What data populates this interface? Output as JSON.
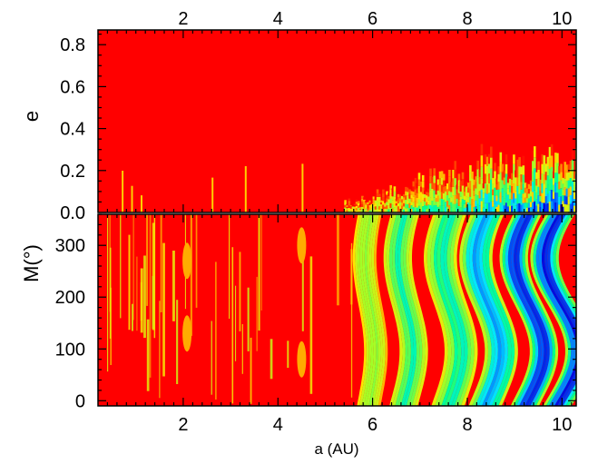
{
  "chart_data": [
    {
      "type": "heatmap",
      "panel": "top",
      "xlabel": "",
      "ylabel": "e",
      "xlim": [
        0.2,
        10.3
      ],
      "ylim": [
        0.0,
        0.87
      ],
      "x_ticks": [
        2,
        4,
        6,
        8,
        10
      ],
      "x_tick_labels": [
        "2",
        "4",
        "6",
        "8",
        "10"
      ],
      "x_tick_labels_position": "top",
      "y_ticks": [
        0.0,
        0.2,
        0.4,
        0.6,
        0.8
      ],
      "y_tick_labels": [
        "0.0",
        "0.2",
        "0.4",
        "0.6",
        "0.8"
      ],
      "colormap": [
        "#ff0000",
        "#ffff00",
        "#00ff80",
        "#00ffff",
        "#0000ff"
      ],
      "background_color": "#ff0000",
      "stable_region_boundary": [
        {
          "a": 0.6,
          "e": 0.25
        },
        {
          "a": 1.0,
          "e": 0.12
        },
        {
          "a": 1.5,
          "e": 0.06
        },
        {
          "a": 2.6,
          "e": 0.2
        },
        {
          "a": 4.5,
          "e": 0.25
        },
        {
          "a": 5.5,
          "e": 0.05
        },
        {
          "a": 6.5,
          "e": 0.12
        },
        {
          "a": 7.5,
          "e": 0.18
        },
        {
          "a": 8.5,
          "e": 0.28
        },
        {
          "a": 9.5,
          "e": 0.25
        },
        {
          "a": 10.3,
          "e": 0.32
        }
      ]
    },
    {
      "type": "heatmap",
      "panel": "bottom",
      "xlabel": "a (AU)",
      "ylabel": "M(°)",
      "xlim": [
        0.2,
        10.3
      ],
      "ylim": [
        -10,
        360
      ],
      "x_ticks": [
        2,
        4,
        6,
        8,
        10
      ],
      "x_tick_labels": [
        "2",
        "4",
        "6",
        "8",
        "10"
      ],
      "y_ticks": [
        0,
        100,
        200,
        300
      ],
      "y_tick_labels": [
        "0",
        "100",
        "200",
        "300"
      ],
      "colormap": [
        "#ff0000",
        "#ffff00",
        "#00ff80",
        "#00ffff",
        "#0000ff"
      ],
      "background_color": "#ff0000",
      "islands": [
        {
          "a": 2.08,
          "M": 270
        },
        {
          "a": 2.08,
          "M": 130
        },
        {
          "a": 4.5,
          "M": 300
        },
        {
          "a": 4.5,
          "M": 80
        }
      ],
      "stable_bands": [
        {
          "a_start": 5.7,
          "a_end": 6.2,
          "level": 0.4
        },
        {
          "a_start": 6.4,
          "a_end": 7.0,
          "level": 0.55
        },
        {
          "a_start": 7.3,
          "a_end": 8.0,
          "level": 0.6
        },
        {
          "a_start": 8.1,
          "a_end": 8.8,
          "level": 0.8
        },
        {
          "a_start": 9.0,
          "a_end": 9.6,
          "level": 0.95
        },
        {
          "a_start": 9.7,
          "a_end": 10.3,
          "level": 0.95
        }
      ]
    }
  ]
}
